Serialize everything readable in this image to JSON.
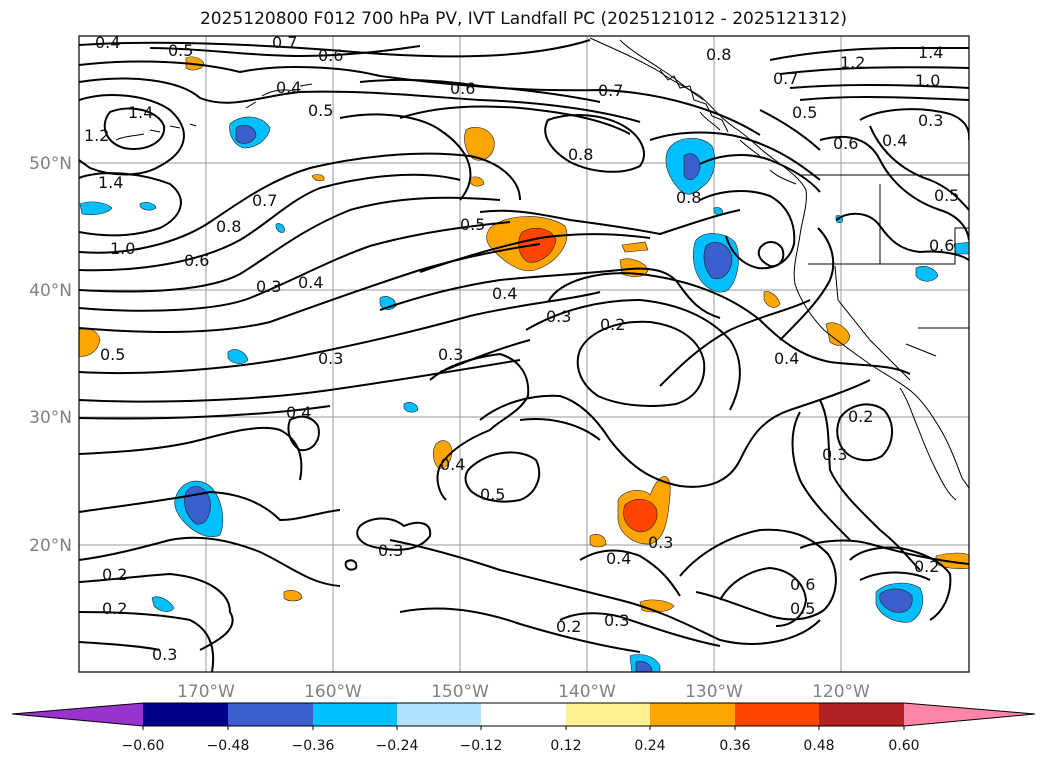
{
  "title": "2025120800 F012 700 hPa PV, IVT Landfall PC (2025121012 - 2025121312)",
  "map": {
    "lat_labels": [
      "50°N",
      "40°N",
      "30°N",
      "20°N"
    ],
    "lon_labels": [
      "170°W",
      "160°W",
      "150°W",
      "140°W",
      "130°W",
      "120°W"
    ],
    "contour_labels": [
      {
        "text": "0.4"
      },
      {
        "text": "0.5"
      },
      {
        "text": "0.7"
      },
      {
        "text": "0.6"
      },
      {
        "text": "0.8"
      },
      {
        "text": "0.7"
      },
      {
        "text": "1.2"
      },
      {
        "text": "1.4"
      },
      {
        "text": "1.0"
      },
      {
        "text": "1.4"
      },
      {
        "text": "1.2"
      },
      {
        "text": "1.4"
      },
      {
        "text": "0.4"
      },
      {
        "text": "0.5"
      },
      {
        "text": "0.6"
      },
      {
        "text": "0.7"
      },
      {
        "text": "0.5"
      },
      {
        "text": "0.3"
      },
      {
        "text": "0.8"
      },
      {
        "text": "0.6"
      },
      {
        "text": "0.4"
      },
      {
        "text": "0.8"
      },
      {
        "text": "0.5"
      },
      {
        "text": "0.7"
      },
      {
        "text": "0.8"
      },
      {
        "text": "0.6"
      },
      {
        "text": "1.0"
      },
      {
        "text": "0.5"
      },
      {
        "text": "0.6"
      },
      {
        "text": "0.3"
      },
      {
        "text": "0.4"
      },
      {
        "text": "0.4"
      },
      {
        "text": "0.3"
      },
      {
        "text": "0.2"
      },
      {
        "text": "0.5"
      },
      {
        "text": "0.3"
      },
      {
        "text": "0.3"
      },
      {
        "text": "0.4"
      },
      {
        "text": "0.4"
      },
      {
        "text": "0.2"
      },
      {
        "text": "0.4"
      },
      {
        "text": "0.3"
      },
      {
        "text": "0.5"
      },
      {
        "text": "0.3"
      },
      {
        "text": "0.2"
      },
      {
        "text": "0.3"
      },
      {
        "text": "0.4"
      },
      {
        "text": "0.6"
      },
      {
        "text": "0.5"
      },
      {
        "text": "0.2"
      },
      {
        "text": "0.2"
      },
      {
        "text": "0.2"
      },
      {
        "text": "0.3"
      },
      {
        "text": "0.3"
      }
    ]
  },
  "colorbar": {
    "ticks": [
      "−0.60",
      "−0.48",
      "−0.36",
      "−0.24",
      "−0.12",
      "0.12",
      "0.24",
      "0.36",
      "0.48",
      "0.60"
    ],
    "colors": {
      "under": "#9a32cd",
      "c1": "#00008b",
      "c2": "#3a5fcd",
      "c3": "#00bfff",
      "c4": "#b0e2ff",
      "c5": "#ffffff",
      "c6": "#fff090",
      "c7": "#ffa500",
      "c8": "#ff4500",
      "c9": "#b22222",
      "over": "#ff85a8"
    }
  }
}
